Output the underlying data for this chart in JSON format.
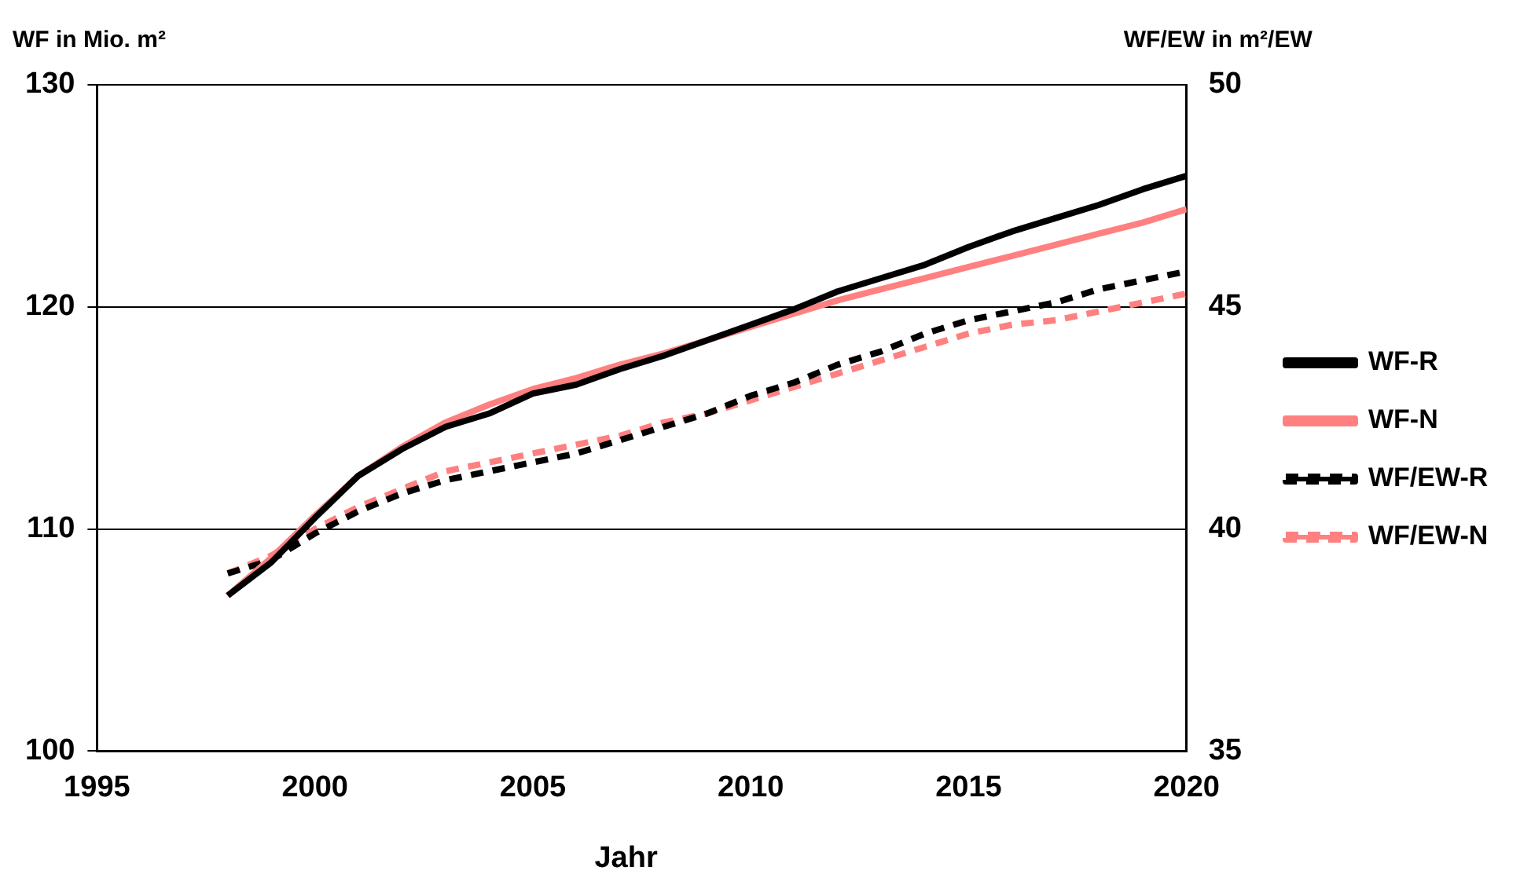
{
  "chart_data": {
    "type": "line",
    "xlabel": "Jahr",
    "ylabel": "WF in Mio. m²",
    "y2label": "WF/EW in m²/EW",
    "x": [
      1998,
      1999,
      2000,
      2001,
      2002,
      2003,
      2004,
      2005,
      2006,
      2007,
      2008,
      2009,
      2010,
      2011,
      2012,
      2013,
      2014,
      2015,
      2016,
      2017,
      2018,
      2019,
      2020
    ],
    "series": [
      {
        "name": "WF-R",
        "color": "#000000",
        "line_style": "solid",
        "values": [
          107.0,
          108.5,
          110.5,
          112.4,
          113.6,
          114.6,
          115.2,
          116.1,
          116.5,
          117.2,
          117.8,
          118.5,
          119.2,
          119.9,
          120.7,
          121.3,
          121.9,
          122.7,
          123.4,
          124.0,
          124.6,
          125.3,
          125.9
        ]
      },
      {
        "name": "WF-N",
        "color": "#ff8080",
        "line_style": "solid",
        "values": [
          107.0,
          108.7,
          110.6,
          112.4,
          113.7,
          114.8,
          115.6,
          116.3,
          116.8,
          117.4,
          117.9,
          118.5,
          119.1,
          119.7,
          120.3,
          120.8,
          121.3,
          121.8,
          122.3,
          122.8,
          123.3,
          123.8,
          124.4
        ]
      },
      {
        "name": "WF/EW-R",
        "color": "#000000",
        "line_style": "dashed",
        "axis": "y2",
        "values": [
          39.0,
          39.3,
          39.9,
          40.4,
          40.8,
          41.1,
          41.3,
          41.5,
          41.7,
          42.0,
          42.3,
          42.6,
          43.0,
          43.3,
          43.7,
          44.0,
          44.4,
          44.7,
          44.9,
          45.1,
          45.4,
          45.6,
          45.8
        ]
      },
      {
        "name": "WF/EW-N",
        "color": "#ff8080",
        "line_style": "dashed",
        "axis": "y2",
        "values": [
          39.0,
          39.4,
          40.0,
          40.5,
          40.9,
          41.3,
          41.5,
          41.7,
          41.9,
          42.1,
          42.4,
          42.6,
          42.9,
          43.2,
          43.5,
          43.8,
          44.1,
          44.4,
          44.6,
          44.7,
          44.9,
          45.1,
          45.3
        ]
      }
    ],
    "xlim": [
      1995,
      2020
    ],
    "xticks": [
      1995,
      2000,
      2005,
      2010,
      2015,
      2020
    ],
    "ylim": [
      100,
      130
    ],
    "yticks": [
      100,
      110,
      120,
      130
    ],
    "y2lim": [
      35,
      50
    ],
    "y2ticks": [
      35,
      40,
      45,
      50
    ],
    "grid": "y",
    "legend": "right",
    "marker": "none"
  }
}
